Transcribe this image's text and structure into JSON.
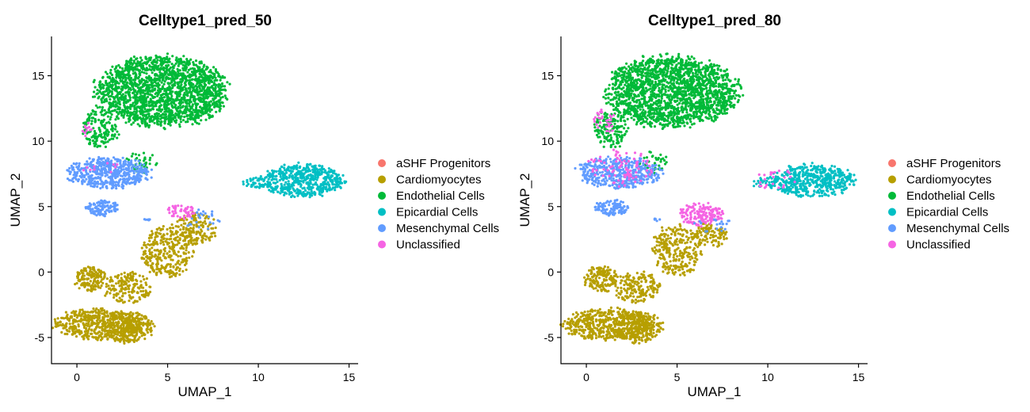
{
  "chart_data": [
    {
      "type": "scatter",
      "title": "Celltype1_pred_50",
      "xlabel": "UMAP_1",
      "ylabel": "UMAP_2",
      "xlim": [
        -1.4,
        15.5
      ],
      "ylim": [
        -7.0,
        18.0
      ],
      "xticks": [
        0,
        5,
        10,
        15
      ],
      "yticks": [
        -5,
        0,
        5,
        10,
        15
      ],
      "grid": false,
      "legend_position": "right",
      "series": [
        {
          "name": "aSHF Progenitors",
          "color": "#F8766D"
        },
        {
          "name": "Cardiomyocytes",
          "color": "#B79F00"
        },
        {
          "name": "Endothelial Cells",
          "color": "#00BA38"
        },
        {
          "name": "Epicardial Cells",
          "color": "#00BFC4"
        },
        {
          "name": "Mesenchymal Cells",
          "color": "#619CFF"
        },
        {
          "name": "Unclassified",
          "color": "#F564E3"
        }
      ],
      "clusters": [
        {
          "series": "Endothelial Cells",
          "cx": 4.7,
          "cy": 13.8,
          "rx": 3.6,
          "ry": 2.7,
          "n": 1900,
          "shape": "ellipse"
        },
        {
          "series": "Endothelial Cells",
          "cx": 1.3,
          "cy": 11.0,
          "rx": 1.0,
          "ry": 1.5,
          "n": 160,
          "shape": "ellipse"
        },
        {
          "series": "Endothelial Cells",
          "cx": 3.6,
          "cy": 8.4,
          "rx": 0.9,
          "ry": 0.9,
          "n": 40,
          "shape": "ellipse"
        },
        {
          "series": "Mesenchymal Cells",
          "cx": 1.8,
          "cy": 7.6,
          "rx": 2.3,
          "ry": 1.2,
          "n": 520,
          "shape": "ellipse"
        },
        {
          "series": "Mesenchymal Cells",
          "cx": 1.4,
          "cy": 4.9,
          "rx": 0.9,
          "ry": 0.6,
          "n": 110,
          "shape": "ellipse"
        },
        {
          "series": "Epicardial Cells",
          "cx": 12.5,
          "cy": 7.0,
          "rx": 2.3,
          "ry": 1.25,
          "n": 520,
          "shape": "ellipse"
        },
        {
          "series": "Epicardial Cells",
          "cx": 9.9,
          "cy": 6.8,
          "rx": 0.8,
          "ry": 0.4,
          "n": 40,
          "shape": "ellipse"
        },
        {
          "series": "Cardiomyocytes",
          "cx": 1.2,
          "cy": -4.0,
          "rx": 2.4,
          "ry": 1.2,
          "n": 480,
          "shape": "ellipse"
        },
        {
          "series": "Cardiomyocytes",
          "cx": 2.8,
          "cy": -4.2,
          "rx": 1.4,
          "ry": 1.2,
          "n": 260,
          "shape": "ellipse"
        },
        {
          "series": "Cardiomyocytes",
          "cx": 0.8,
          "cy": -0.5,
          "rx": 0.9,
          "ry": 1.0,
          "n": 150,
          "shape": "ellipse"
        },
        {
          "series": "Cardiomyocytes",
          "cx": 2.8,
          "cy": -1.2,
          "rx": 1.3,
          "ry": 1.2,
          "n": 170,
          "shape": "ellipse"
        },
        {
          "series": "Cardiomyocytes",
          "cx": 5.0,
          "cy": 1.6,
          "rx": 1.4,
          "ry": 2.0,
          "n": 300,
          "shape": "ellipse"
        },
        {
          "series": "Cardiomyocytes",
          "cx": 6.6,
          "cy": 3.3,
          "rx": 1.1,
          "ry": 1.2,
          "n": 150,
          "shape": "ellipse"
        },
        {
          "series": "Unclassified",
          "cx": 5.8,
          "cy": 4.6,
          "rx": 0.8,
          "ry": 0.6,
          "n": 45,
          "shape": "ellipse"
        },
        {
          "series": "Unclassified",
          "cx": 0.6,
          "cy": 10.8,
          "rx": 0.3,
          "ry": 0.6,
          "n": 12,
          "shape": "ellipse"
        },
        {
          "series": "Unclassified",
          "cx": 1.5,
          "cy": 8.0,
          "rx": 1.2,
          "ry": 0.6,
          "n": 10,
          "shape": "ellipse"
        },
        {
          "series": "Mesenchymal Cells",
          "cx": 7.0,
          "cy": 4.0,
          "rx": 1.0,
          "ry": 0.8,
          "n": 25,
          "shape": "ellipse"
        },
        {
          "series": "Mesenchymal Cells",
          "cx": 3.9,
          "cy": 4.0,
          "rx": 0.2,
          "ry": 0.1,
          "n": 6,
          "shape": "ellipse"
        }
      ]
    },
    {
      "type": "scatter",
      "title": "Celltype1_pred_80",
      "xlabel": "UMAP_1",
      "ylabel": "UMAP_2",
      "xlim": [
        -1.4,
        15.5
      ],
      "ylim": [
        -7.0,
        18.0
      ],
      "xticks": [
        0,
        5,
        10,
        15
      ],
      "yticks": [
        -5,
        0,
        5,
        10,
        15
      ],
      "grid": false,
      "legend_position": "right",
      "series": [
        {
          "name": "aSHF Progenitors",
          "color": "#F8766D"
        },
        {
          "name": "Cardiomyocytes",
          "color": "#B79F00"
        },
        {
          "name": "Endothelial Cells",
          "color": "#00BA38"
        },
        {
          "name": "Epicardial Cells",
          "color": "#00BFC4"
        },
        {
          "name": "Mesenchymal Cells",
          "color": "#619CFF"
        },
        {
          "name": "Unclassified",
          "color": "#F564E3"
        }
      ],
      "clusters": [
        {
          "series": "Endothelial Cells",
          "cx": 4.7,
          "cy": 13.8,
          "rx": 3.6,
          "ry": 2.7,
          "n": 1900,
          "shape": "ellipse"
        },
        {
          "series": "Endothelial Cells",
          "cx": 1.3,
          "cy": 11.0,
          "rx": 1.0,
          "ry": 1.5,
          "n": 150,
          "shape": "ellipse"
        },
        {
          "series": "Endothelial Cells",
          "cx": 3.6,
          "cy": 8.4,
          "rx": 0.9,
          "ry": 0.9,
          "n": 35,
          "shape": "ellipse"
        },
        {
          "series": "Mesenchymal Cells",
          "cx": 1.8,
          "cy": 7.6,
          "rx": 2.3,
          "ry": 1.2,
          "n": 470,
          "shape": "ellipse"
        },
        {
          "series": "Mesenchymal Cells",
          "cx": 1.4,
          "cy": 4.9,
          "rx": 0.9,
          "ry": 0.6,
          "n": 110,
          "shape": "ellipse"
        },
        {
          "series": "Unclassified",
          "cx": 1.8,
          "cy": 8.0,
          "rx": 1.8,
          "ry": 1.4,
          "n": 90,
          "shape": "ellipse"
        },
        {
          "series": "Unclassified",
          "cx": 1.0,
          "cy": 11.5,
          "rx": 0.6,
          "ry": 1.2,
          "n": 30,
          "shape": "ellipse"
        },
        {
          "series": "Epicardial Cells",
          "cx": 12.5,
          "cy": 7.0,
          "rx": 2.3,
          "ry": 1.25,
          "n": 500,
          "shape": "ellipse"
        },
        {
          "series": "Epicardial Cells",
          "cx": 9.9,
          "cy": 6.8,
          "rx": 0.8,
          "ry": 0.4,
          "n": 35,
          "shape": "ellipse"
        },
        {
          "series": "Unclassified",
          "cx": 10.5,
          "cy": 7.0,
          "rx": 1.5,
          "ry": 0.8,
          "n": 25,
          "shape": "ellipse"
        },
        {
          "series": "Cardiomyocytes",
          "cx": 1.2,
          "cy": -4.0,
          "rx": 2.4,
          "ry": 1.2,
          "n": 480,
          "shape": "ellipse"
        },
        {
          "series": "Cardiomyocytes",
          "cx": 2.8,
          "cy": -4.2,
          "rx": 1.4,
          "ry": 1.2,
          "n": 260,
          "shape": "ellipse"
        },
        {
          "series": "Cardiomyocytes",
          "cx": 0.8,
          "cy": -0.5,
          "rx": 0.9,
          "ry": 1.0,
          "n": 150,
          "shape": "ellipse"
        },
        {
          "series": "Cardiomyocytes",
          "cx": 2.8,
          "cy": -1.2,
          "rx": 1.3,
          "ry": 1.2,
          "n": 170,
          "shape": "ellipse"
        },
        {
          "series": "Cardiomyocytes",
          "cx": 5.0,
          "cy": 1.6,
          "rx": 1.4,
          "ry": 2.0,
          "n": 260,
          "shape": "ellipse"
        },
        {
          "series": "Cardiomyocytes",
          "cx": 6.8,
          "cy": 2.8,
          "rx": 1.0,
          "ry": 0.9,
          "n": 110,
          "shape": "ellipse"
        },
        {
          "series": "Unclassified",
          "cx": 6.3,
          "cy": 4.4,
          "rx": 1.2,
          "ry": 0.9,
          "n": 160,
          "shape": "ellipse"
        },
        {
          "series": "Mesenchymal Cells",
          "cx": 7.0,
          "cy": 3.6,
          "rx": 1.0,
          "ry": 0.6,
          "n": 20,
          "shape": "ellipse"
        },
        {
          "series": "Mesenchymal Cells",
          "cx": 3.9,
          "cy": 4.0,
          "rx": 0.2,
          "ry": 0.1,
          "n": 6,
          "shape": "ellipse"
        }
      ]
    }
  ]
}
